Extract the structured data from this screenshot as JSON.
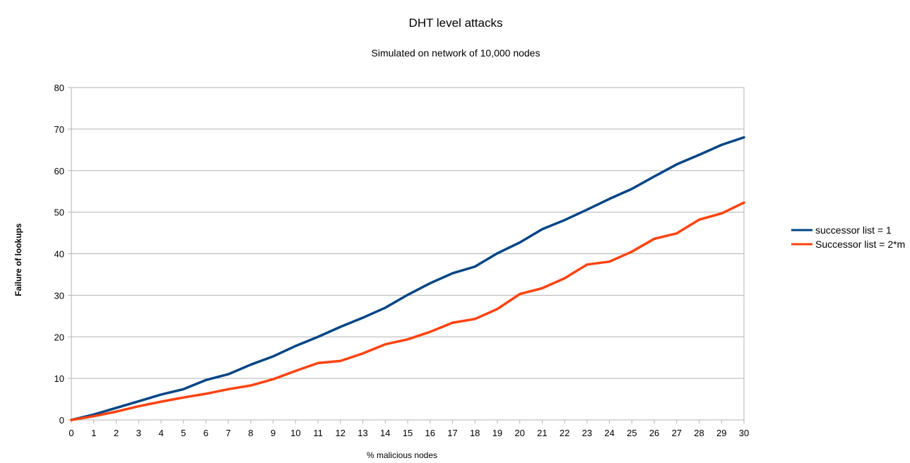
{
  "chart_data": {
    "type": "line",
    "title": "DHT level attacks",
    "subtitle": "Simulated on network of 10,000 nodes",
    "xlabel": "% malicious nodes",
    "ylabel": "Failure of lookups",
    "x": [
      0,
      1,
      2,
      3,
      4,
      5,
      6,
      7,
      8,
      9,
      10,
      11,
      12,
      13,
      14,
      15,
      16,
      17,
      18,
      19,
      20,
      21,
      22,
      23,
      24,
      25,
      26,
      27,
      28,
      29,
      30
    ],
    "ylim": [
      0,
      80
    ],
    "yticks": [
      0,
      10,
      20,
      30,
      40,
      50,
      60,
      70,
      80
    ],
    "grid": "horizontal",
    "legend_position": "right",
    "series": [
      {
        "name": "successor list = 1",
        "color": "#004586",
        "values": [
          0,
          1.3,
          2.9,
          4.5,
          6.1,
          7.4,
          9.6,
          11.0,
          13.3,
          15.3,
          17.8,
          20.0,
          22.4,
          24.6,
          27.0,
          30.1,
          32.9,
          35.3,
          36.9,
          40.1,
          42.7,
          45.9,
          48.1,
          50.6,
          53.2,
          55.6,
          58.6,
          61.5,
          63.8,
          66.2,
          68.0
        ]
      },
      {
        "name": "Successor list = 2*m",
        "color": "#ff420e",
        "values": [
          0,
          0.9,
          2.0,
          3.3,
          4.4,
          5.4,
          6.3,
          7.4,
          8.3,
          9.8,
          11.8,
          13.7,
          14.2,
          16.0,
          18.2,
          19.4,
          21.2,
          23.4,
          24.3,
          26.7,
          30.3,
          31.7,
          34.1,
          37.4,
          38.1,
          40.5,
          43.6,
          44.9,
          48.2,
          49.7,
          52.3
        ]
      }
    ]
  }
}
